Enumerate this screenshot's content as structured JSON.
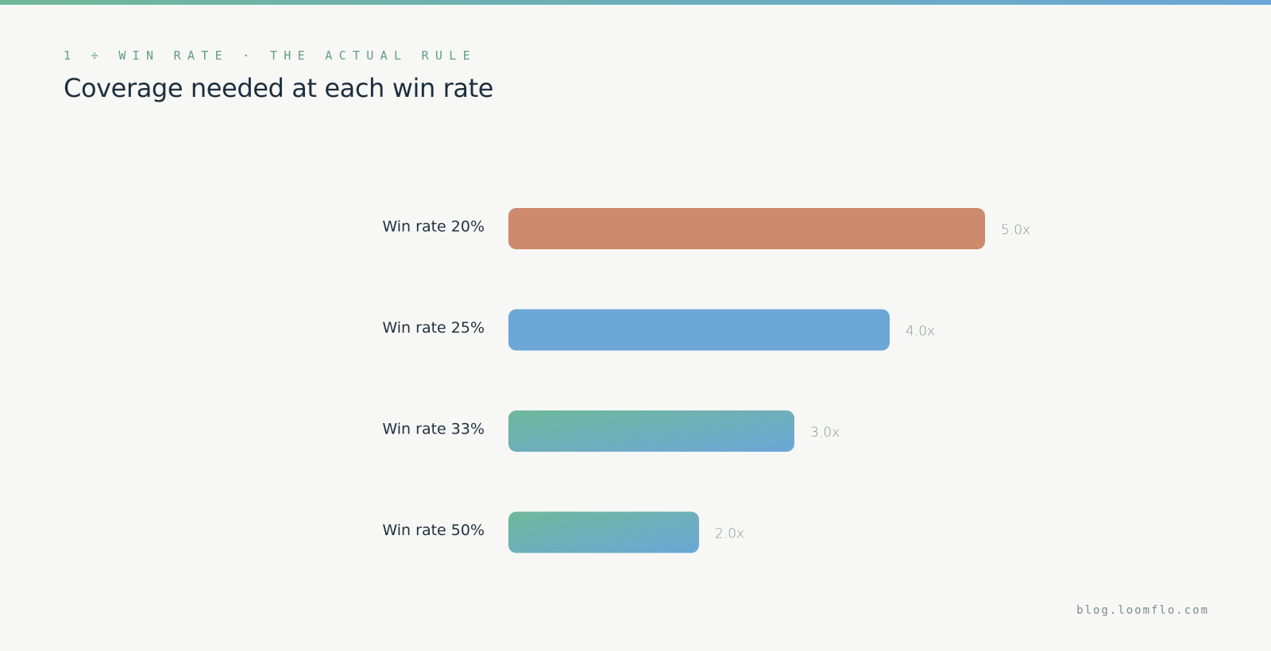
{
  "header": {
    "eyebrow": "1 ÷ WIN RATE · THE ACTUAL RULE",
    "title": "Coverage needed at each win rate"
  },
  "footer": {
    "site": "blog.loomflo.com"
  },
  "colors": {
    "highlight": "#cd8a6c",
    "blue": "#6ca7d8",
    "green": "#6fb89b",
    "accent_stripe_start": "#6fb79a",
    "accent_stripe_end": "#6aa6d8"
  },
  "chart_data": {
    "type": "bar",
    "orientation": "horizontal",
    "title": "Coverage needed at each win rate",
    "categories": [
      "Win rate 20%",
      "Win rate 25%",
      "Win rate 33%",
      "Win rate 50%"
    ],
    "values": [
      5.0,
      4.0,
      3.0,
      2.0
    ],
    "value_labels": [
      "5.0x",
      "4.0x",
      "3.0x",
      "2.0x"
    ],
    "bar_styles": [
      "highlight",
      "blue",
      "gradient",
      "gradient"
    ],
    "xlim": [
      0,
      5.0
    ],
    "grid": false,
    "legend": "none"
  }
}
